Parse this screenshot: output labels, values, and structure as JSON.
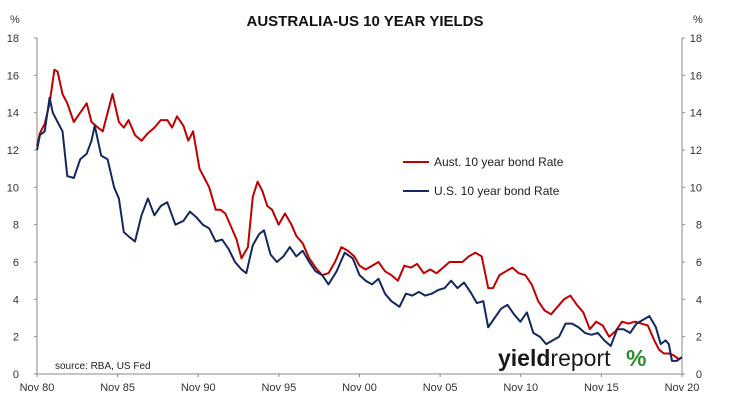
{
  "chart_data": {
    "type": "line",
    "title": "AUSTRALIA-US 10 YEAR YIELDS",
    "ylabel_left": "%",
    "ylabel_right": "%",
    "ylim": [
      0,
      18
    ],
    "yticks": [
      0,
      2,
      4,
      6,
      8,
      10,
      12,
      14,
      16,
      18
    ],
    "xlim": [
      1980.92,
      2020.92
    ],
    "xticks": [
      {
        "label": "Nov 80",
        "value": 1980.92
      },
      {
        "label": "Nov 85",
        "value": 1985.92
      },
      {
        "label": "Nov 90",
        "value": 1990.92
      },
      {
        "label": "Nov 95",
        "value": 1995.92
      },
      {
        "label": "Nov 00",
        "value": 2000.92
      },
      {
        "label": "Nov 05",
        "value": 2005.92
      },
      {
        "label": "Nov 10",
        "value": 2010.92
      },
      {
        "label": "Nov 15",
        "value": 2015.92
      },
      {
        "label": "Nov 20",
        "value": 2020.92
      }
    ],
    "legend_position": "right-center",
    "grid": false,
    "series": [
      {
        "name": "Aust. 10 year bond Rate",
        "color": "#c00000",
        "x": [
          1980.92,
          1981.1,
          1981.4,
          1981.7,
          1982.0,
          1982.2,
          1982.5,
          1982.8,
          1983.2,
          1983.6,
          1984.0,
          1984.3,
          1984.7,
          1985.0,
          1985.3,
          1985.6,
          1986.0,
          1986.3,
          1986.6,
          1987.0,
          1987.4,
          1987.8,
          1988.2,
          1988.6,
          1989.0,
          1989.3,
          1989.6,
          1990.0,
          1990.3,
          1990.6,
          1991.0,
          1991.3,
          1991.6,
          1992.0,
          1992.3,
          1992.6,
          1993.0,
          1993.3,
          1993.6,
          1994.0,
          1994.3,
          1994.6,
          1994.9,
          1995.2,
          1995.5,
          1995.9,
          1996.3,
          1996.7,
          1997.0,
          1997.4,
          1997.8,
          1998.2,
          1998.6,
          1999.0,
          1999.4,
          1999.8,
          2000.2,
          2000.6,
          2000.92,
          2001.3,
          2001.7,
          2002.1,
          2002.5,
          2002.9,
          2003.3,
          2003.7,
          2004.1,
          2004.5,
          2004.9,
          2005.3,
          2005.7,
          2006.1,
          2006.5,
          2006.9,
          2007.3,
          2007.7,
          2008.1,
          2008.5,
          2008.9,
          2009.2,
          2009.6,
          2010.0,
          2010.4,
          2010.8,
          2011.2,
          2011.6,
          2012.0,
          2012.4,
          2012.8,
          2013.2,
          2013.6,
          2014.0,
          2014.4,
          2014.8,
          2015.2,
          2015.6,
          2016.0,
          2016.4,
          2016.8,
          2017.2,
          2017.6,
          2018.0,
          2018.4,
          2018.8,
          2019.2,
          2019.5,
          2019.8,
          2020.1,
          2020.4,
          2020.7,
          2020.92
        ],
        "values": [
          12.2,
          12.9,
          13.4,
          14.5,
          16.3,
          16.2,
          15.0,
          14.5,
          13.5,
          14.0,
          14.5,
          13.5,
          13.2,
          13.0,
          14.0,
          15.0,
          13.5,
          13.2,
          13.6,
          12.8,
          12.5,
          12.9,
          13.2,
          13.6,
          13.6,
          13.2,
          13.8,
          13.3,
          12.5,
          13.0,
          11.0,
          10.5,
          10.0,
          8.8,
          8.8,
          8.6,
          7.8,
          7.2,
          6.2,
          6.8,
          9.5,
          10.3,
          9.8,
          9.0,
          8.8,
          8.0,
          8.6,
          8.0,
          7.4,
          7.0,
          6.2,
          5.7,
          5.3,
          5.4,
          6.0,
          6.8,
          6.6,
          6.3,
          5.8,
          5.6,
          5.8,
          6.0,
          5.5,
          5.3,
          5.0,
          5.8,
          5.7,
          5.9,
          5.4,
          5.6,
          5.4,
          5.7,
          6.0,
          6.0,
          6.0,
          6.3,
          6.5,
          6.3,
          4.6,
          4.6,
          5.3,
          5.5,
          5.7,
          5.4,
          5.3,
          4.8,
          3.9,
          3.4,
          3.2,
          3.6,
          4.0,
          4.2,
          3.7,
          3.3,
          2.4,
          2.8,
          2.6,
          2.0,
          2.3,
          2.8,
          2.7,
          2.8,
          2.7,
          2.6,
          1.8,
          1.3,
          1.1,
          1.1,
          1.0,
          0.8,
          0.9
        ]
      },
      {
        "name": "U.S. 10 year bond Rate",
        "color": "#14285f",
        "x": [
          1980.92,
          1981.1,
          1981.4,
          1981.7,
          1981.9,
          1982.2,
          1982.5,
          1982.8,
          1983.2,
          1983.6,
          1984.0,
          1984.3,
          1984.5,
          1984.9,
          1985.3,
          1985.7,
          1986.0,
          1986.3,
          1986.7,
          1987.0,
          1987.4,
          1987.8,
          1988.2,
          1988.6,
          1989.0,
          1989.5,
          1990.0,
          1990.4,
          1990.8,
          1991.2,
          1991.6,
          1992.0,
          1992.4,
          1992.8,
          1993.2,
          1993.6,
          1993.9,
          1994.3,
          1994.7,
          1995.0,
          1995.4,
          1995.8,
          1996.2,
          1996.6,
          1997.0,
          1997.4,
          1997.8,
          1998.2,
          1998.6,
          1999.0,
          1999.5,
          2000.0,
          2000.5,
          2000.92,
          2001.3,
          2001.7,
          2002.1,
          2002.5,
          2002.9,
          2003.4,
          2003.8,
          2004.2,
          2004.6,
          2005.0,
          2005.4,
          2005.8,
          2006.2,
          2006.6,
          2007.0,
          2007.4,
          2007.8,
          2008.2,
          2008.6,
          2008.9,
          2009.3,
          2009.7,
          2010.1,
          2010.5,
          2010.9,
          2011.3,
          2011.7,
          2012.1,
          2012.5,
          2012.9,
          2013.3,
          2013.7,
          2014.1,
          2014.5,
          2014.9,
          2015.3,
          2015.7,
          2016.1,
          2016.5,
          2016.9,
          2017.3,
          2017.7,
          2018.1,
          2018.5,
          2018.9,
          2019.3,
          2019.6,
          2019.9,
          2020.1,
          2020.3,
          2020.6,
          2020.92
        ],
        "values": [
          12.0,
          12.8,
          13.0,
          14.8,
          14.0,
          13.5,
          13.0,
          10.6,
          10.5,
          11.5,
          11.8,
          12.5,
          13.3,
          11.7,
          11.5,
          10.0,
          9.4,
          7.6,
          7.3,
          7.1,
          8.5,
          9.4,
          8.5,
          9.0,
          9.2,
          8.0,
          8.2,
          8.7,
          8.4,
          8.0,
          7.8,
          7.1,
          7.2,
          6.7,
          6.0,
          5.6,
          5.4,
          6.9,
          7.5,
          7.7,
          6.4,
          6.0,
          6.3,
          6.8,
          6.3,
          6.6,
          6.0,
          5.5,
          5.3,
          4.8,
          5.5,
          6.5,
          6.2,
          5.3,
          5.0,
          4.8,
          5.1,
          4.3,
          3.9,
          3.6,
          4.3,
          4.2,
          4.4,
          4.2,
          4.3,
          4.5,
          4.6,
          5.0,
          4.6,
          4.9,
          4.4,
          3.8,
          3.9,
          2.5,
          3.0,
          3.5,
          3.7,
          3.2,
          2.8,
          3.3,
          2.2,
          2.0,
          1.6,
          1.8,
          2.0,
          2.7,
          2.7,
          2.5,
          2.2,
          2.1,
          2.2,
          1.8,
          1.5,
          2.4,
          2.4,
          2.2,
          2.7,
          2.9,
          3.1,
          2.5,
          1.6,
          1.8,
          1.6,
          0.7,
          0.7,
          0.9
        ]
      }
    ],
    "source_note": "source: RBA, US Fed"
  },
  "branding": {
    "word_left": "yield",
    "word_right": "report",
    "symbol": "%"
  }
}
